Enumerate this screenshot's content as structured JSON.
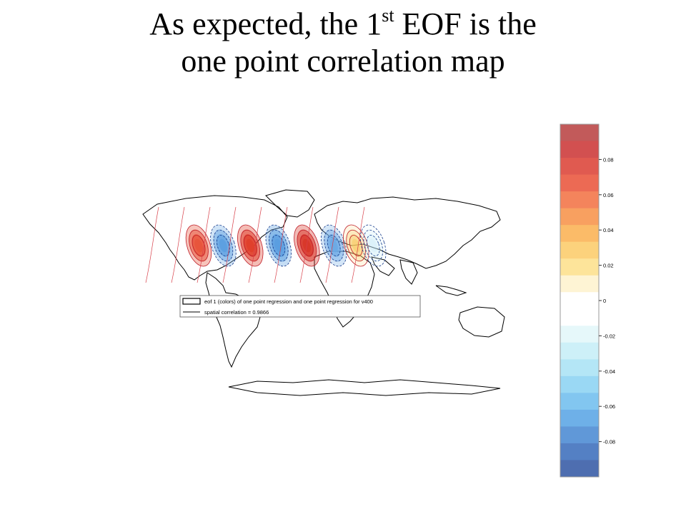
{
  "slide": {
    "title_part1": "As expected, the 1",
    "title_superscript": "st",
    "title_part2": " EOF is the",
    "title_line2": "one point correlation map"
  },
  "legend": {
    "entry1": "eof 1 (colors) of one point regression and one point regression for v400",
    "entry2": "spatial correlation = 0.9866"
  },
  "colorbar": {
    "tick_labels": [
      "0.08",
      "0.06",
      "0.04",
      "0.02",
      "0",
      "-0.02",
      "-0.04",
      "-0.06",
      "-0.08"
    ],
    "tick_values": [
      0.08,
      0.06,
      0.04,
      0.02,
      0,
      -0.02,
      -0.04,
      -0.06,
      -0.08
    ],
    "range": [
      -0.1,
      0.1
    ],
    "colors": [
      "#c25a5a",
      "#d25050",
      "#e05a50",
      "#ec6a54",
      "#f4845c",
      "#f8a060",
      "#fbbb68",
      "#fcd27c",
      "#fde49a",
      "#fef4d4",
      "#ffffff",
      "#ffffff",
      "#e6f8fa",
      "#cdf0f8",
      "#b4e6f6",
      "#9ad8f4",
      "#82c6f0",
      "#6eb0e8",
      "#6098d8",
      "#5480c4",
      "#4e6eb0"
    ]
  },
  "map": {
    "wave_centers": [
      {
        "lon": -100,
        "value": 0.07,
        "color": "#e8553c"
      },
      {
        "lon": -80,
        "value": -0.05,
        "color": "#5a9ee0"
      },
      {
        "lon": -58,
        "value": 0.08,
        "color": "#e0402c"
      },
      {
        "lon": -35,
        "value": -0.06,
        "color": "#5a9ee0"
      },
      {
        "lon": -12,
        "value": 0.09,
        "color": "#d8382a"
      },
      {
        "lon": 10,
        "value": -0.05,
        "color": "#6aa8e4"
      },
      {
        "lon": 28,
        "value": 0.03,
        "color": "#f8c860"
      },
      {
        "lon": 42,
        "value": -0.015,
        "color": "#bfe8f6"
      }
    ]
  }
}
